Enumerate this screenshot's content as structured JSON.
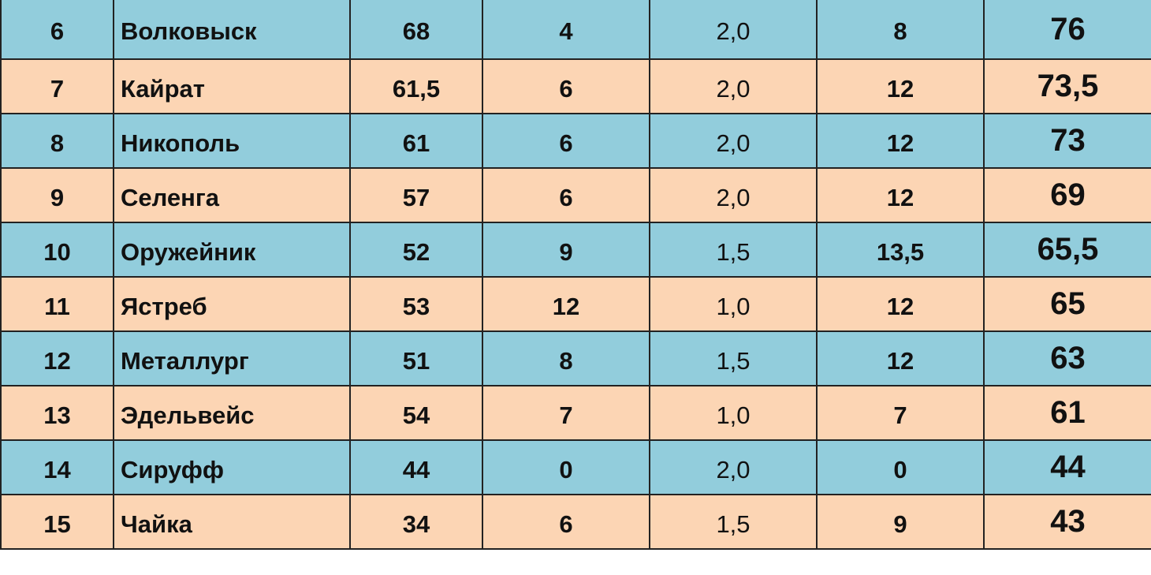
{
  "table": {
    "rows": [
      [
        "6",
        "Волковыск",
        "68",
        "4",
        "2,0",
        "8",
        "76"
      ],
      [
        "7",
        "Кайрат",
        "61,5",
        "6",
        "2,0",
        "12",
        "73,5"
      ],
      [
        "8",
        "Никополь",
        "61",
        "6",
        "2,0",
        "12",
        "73"
      ],
      [
        "9",
        "Селенга",
        "57",
        "6",
        "2,0",
        "12",
        "69"
      ],
      [
        "10",
        "Оружейник",
        "52",
        "9",
        "1,5",
        "13,5",
        "65,5"
      ],
      [
        "11",
        "Ястреб",
        "53",
        "12",
        "1,0",
        "12",
        "65"
      ],
      [
        "12",
        "Металлург",
        "51",
        "8",
        "1,5",
        "12",
        "63"
      ],
      [
        "13",
        "Эдельвейс",
        "54",
        "7",
        "1,0",
        "7",
        "61"
      ],
      [
        "14",
        "Сируфф",
        "44",
        "0",
        "2,0",
        "0",
        "44"
      ],
      [
        "15",
        "Чайка",
        "34",
        "6",
        "1,5",
        "9",
        "43"
      ]
    ]
  }
}
